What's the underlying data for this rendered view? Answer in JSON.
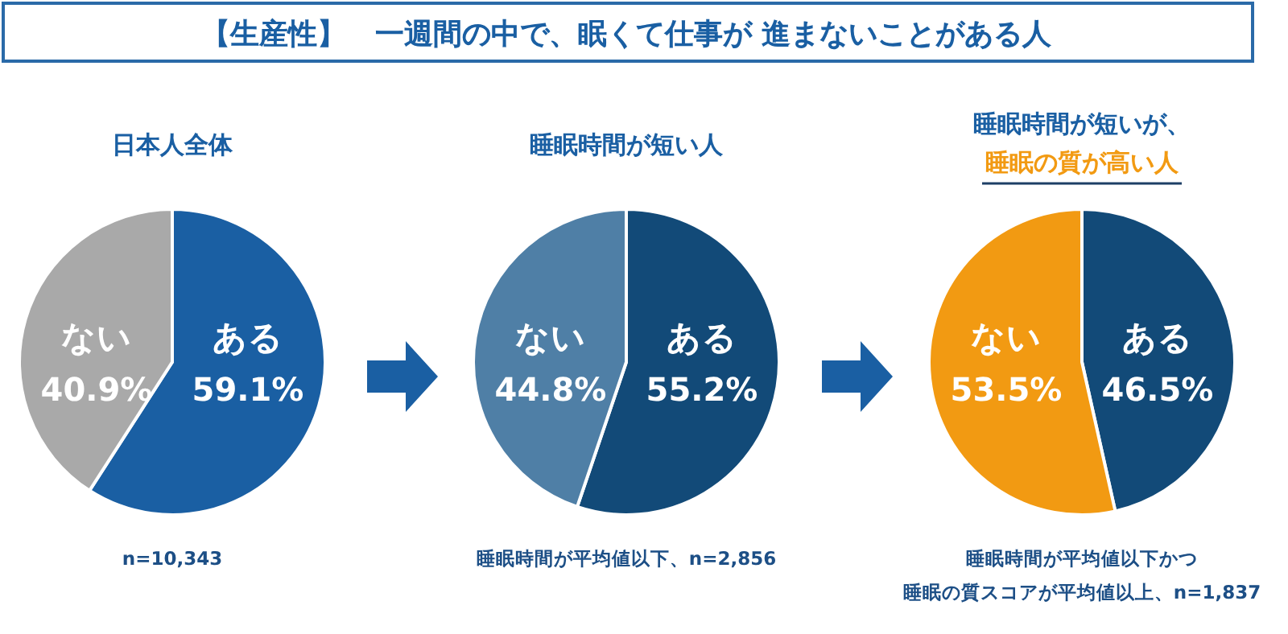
{
  "chart_data": [
    {
      "type": "pie",
      "title": "【生産性】　一週間の中で、眠くて仕事が 進まないことがある人",
      "subtitle": "日本人全体",
      "categories": [
        "ある",
        "ない"
      ],
      "values": [
        59.1,
        40.9
      ],
      "value_labels": [
        "59.1%",
        "40.9%"
      ],
      "colors": [
        "#1a5fa3",
        "#a9a9a9"
      ],
      "annotations": [
        "n=10,343"
      ]
    },
    {
      "type": "pie",
      "subtitle": "睡眠時間が短い人",
      "categories": [
        "ある",
        "ない"
      ],
      "values": [
        55.2,
        44.8
      ],
      "value_labels": [
        "55.2%",
        "44.8%"
      ],
      "colors": [
        "#124a78",
        "#4f7fa6"
      ],
      "annotations": [
        "睡眠時間が平均値以下、n=2,856"
      ]
    },
    {
      "type": "pie",
      "subtitle": [
        "睡眠時間が短いが、",
        "睡眠の質が高い人"
      ],
      "categories": [
        "ある",
        "ない"
      ],
      "values": [
        46.5,
        53.5
      ],
      "value_labels": [
        "46.5%",
        "53.5%"
      ],
      "colors": [
        "#124a78",
        "#f29a12"
      ],
      "annotations": [
        "睡眠時間が平均値以下かつ",
        "睡眠の質スコアが平均値以上、n=1,837"
      ]
    }
  ]
}
